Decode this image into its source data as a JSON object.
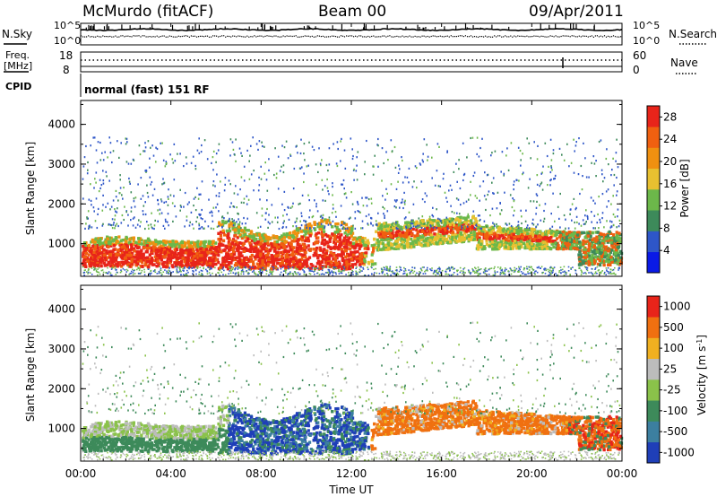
{
  "header": {
    "station": "McMurdo (fitACF)",
    "beam": "Beam 00",
    "date": "09/Apr/2011"
  },
  "noise_panel": {
    "left_label": "N.Sky",
    "right_label": "N.Search",
    "left_ticks": [
      "10^5",
      "10^0"
    ],
    "right_ticks": [
      "10^5",
      "10^0"
    ]
  },
  "freq_panel": {
    "left_label_1": "Freq.",
    "left_label_2": "[MHz]",
    "right_label": "Nave",
    "left_ticks": [
      "18",
      "8"
    ],
    "right_ticks": [
      "60",
      "0"
    ]
  },
  "cpid": {
    "label": "CPID",
    "value": "normal (fast) 151 RF"
  },
  "chart_data": [
    {
      "type": "heatmap",
      "quantity": "Power",
      "ylabel": "Slant Range [km]",
      "ylim": [
        180,
        4600
      ],
      "yticks": [
        "1000",
        "2000",
        "3000",
        "4000"
      ],
      "ytick_values": [
        1000,
        2000,
        3000,
        4000
      ],
      "xlim_hours": [
        0,
        24
      ],
      "colorbar": {
        "label": "Power [dB]",
        "ticks": [
          "4",
          "8",
          "12",
          "16",
          "20",
          "24",
          "28"
        ],
        "tick_values": [
          4,
          8,
          12,
          16,
          20,
          24,
          28
        ],
        "range": [
          0,
          30
        ],
        "colors": [
          "#0a1ae6",
          "#2e56c8",
          "#3d8a5a",
          "#6cb84a",
          "#e8c030",
          "#f09010",
          "#f06010",
          "#e8241a"
        ]
      }
    },
    {
      "type": "heatmap",
      "quantity": "Velocity",
      "ylabel": "Slant Range [km]",
      "ylim": [
        180,
        4600
      ],
      "yticks": [
        "1000",
        "2000",
        "3000",
        "4000"
      ],
      "ytick_values": [
        1000,
        2000,
        3000,
        4000
      ],
      "xlim_hours": [
        0,
        24
      ],
      "colorbar": {
        "label": "Velocity [m s-1]",
        "label_main": "Velocity [m s",
        "label_sup": "-1",
        "label_end": "]",
        "ticks": [
          "1000",
          "500",
          "100",
          "25",
          "-25",
          "-100",
          "-500",
          "-1000"
        ],
        "colors": [
          "#1f3fb8",
          "#3c7fa0",
          "#3d8a5a",
          "#8ac24a",
          "#bcbcbc",
          "#f0b020",
          "#f07010",
          "#e8241a"
        ]
      }
    }
  ],
  "x_axis": {
    "label": "Time UT",
    "ticks": [
      "00:00",
      "04:00",
      "08:00",
      "12:00",
      "16:00",
      "20:00",
      "00:00"
    ],
    "tick_hours": [
      0,
      4,
      8,
      12,
      16,
      20,
      24
    ]
  }
}
